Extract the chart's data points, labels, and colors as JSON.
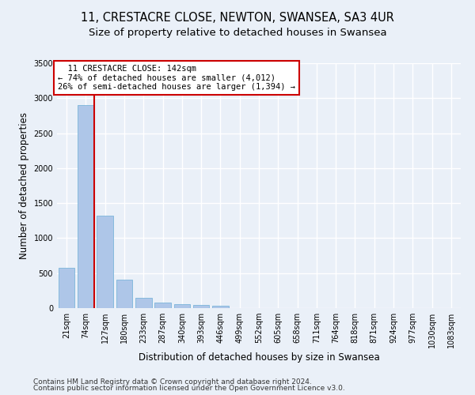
{
  "title_line1": "11, CRESTACRE CLOSE, NEWTON, SWANSEA, SA3 4UR",
  "title_line2": "Size of property relative to detached houses in Swansea",
  "xlabel": "Distribution of detached houses by size in Swansea",
  "ylabel": "Number of detached properties",
  "bin_labels": [
    "21sqm",
    "74sqm",
    "127sqm",
    "180sqm",
    "233sqm",
    "287sqm",
    "340sqm",
    "393sqm",
    "446sqm",
    "499sqm",
    "552sqm",
    "605sqm",
    "658sqm",
    "711sqm",
    "764sqm",
    "818sqm",
    "871sqm",
    "924sqm",
    "977sqm",
    "1030sqm",
    "1083sqm"
  ],
  "bar_values": [
    575,
    2900,
    1320,
    410,
    150,
    80,
    55,
    45,
    35,
    0,
    0,
    0,
    0,
    0,
    0,
    0,
    0,
    0,
    0,
    0,
    0
  ],
  "bar_color": "#aec6e8",
  "bar_edge_color": "#6baed6",
  "annotation_line1": "  11 CRESTACRE CLOSE: 142sqm",
  "annotation_line2": "← 74% of detached houses are smaller (4,012)",
  "annotation_line3": "26% of semi-detached houses are larger (1,394) →",
  "annotation_box_color": "#ffffff",
  "annotation_box_edge": "#cc0000",
  "vline_color": "#cc0000",
  "vline_x": 1.45,
  "ylim": [
    0,
    3500
  ],
  "yticks": [
    0,
    500,
    1000,
    1500,
    2000,
    2500,
    3000,
    3500
  ],
  "footer_line1": "Contains HM Land Registry data © Crown copyright and database right 2024.",
  "footer_line2": "Contains public sector information licensed under the Open Government Licence v3.0.",
  "bg_color": "#eaf0f8",
  "plot_bg_color": "#eaf0f8",
  "grid_color": "#ffffff",
  "title_fontsize": 10.5,
  "subtitle_fontsize": 9.5,
  "axis_label_fontsize": 8.5,
  "tick_fontsize": 7,
  "annotation_fontsize": 7.5,
  "footer_fontsize": 6.5
}
